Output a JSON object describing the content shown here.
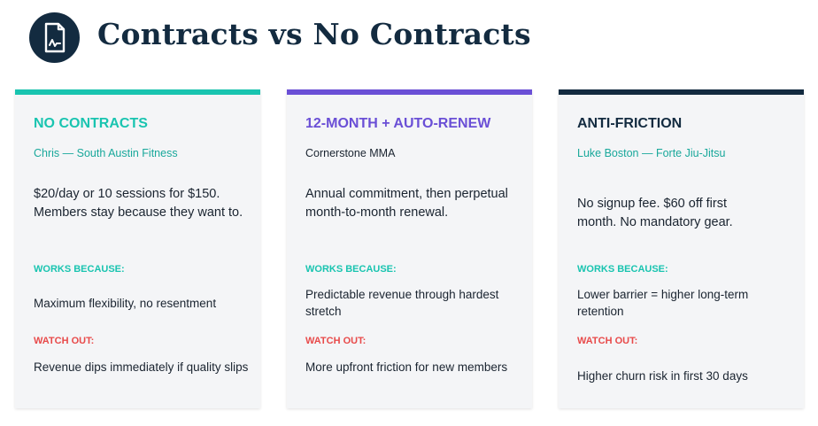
{
  "page": {
    "title": "Contracts vs No Contracts"
  },
  "colors": {
    "navy": "#132b40",
    "teal": "#19c4b0",
    "purple": "#6a4fd6",
    "red": "#e84a4a",
    "card_bg": "#f4f5f7"
  },
  "logo": {
    "icon": "contract-document-icon"
  },
  "cards": [
    {
      "heading": "NO CONTRACTS",
      "subtitle": "Chris — South Austin Fitness",
      "description": "$20/day or 10 sessions for $150. Members stay because they want to.",
      "works_label": "WORKS BECAUSE:",
      "works_text": "Maximum flexibility, no resentment",
      "watch_label": "WATCH OUT:",
      "watch_text": "Revenue dips immediately if quality slips"
    },
    {
      "heading": "12-MONTH + AUTO-RENEW",
      "subtitle": "Cornerstone MMA",
      "description": "Annual commitment, then perpetual month-to-month renewal.",
      "works_label": "WORKS BECAUSE:",
      "works_text": "Predictable revenue through hardest stretch",
      "watch_label": "WATCH OUT:",
      "watch_text": "More upfront friction for new members"
    },
    {
      "heading": "ANTI-FRICTION",
      "subtitle": "Luke Boston — Forte Jiu-Jitsu",
      "description": "No signup fee. $60 off first month. No mandatory gear.",
      "works_label": "WORKS BECAUSE:",
      "works_text": "Lower barrier = higher long-term retention",
      "watch_label": "WATCH OUT:",
      "watch_text": "Higher churn risk in first 30 days"
    }
  ]
}
